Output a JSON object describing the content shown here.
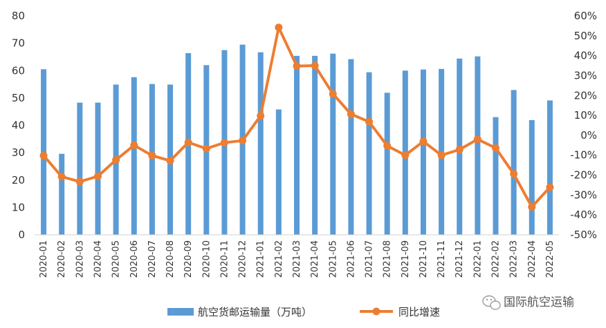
{
  "chart_data": {
    "type": "bar",
    "categories": [
      "2020-01",
      "2020-02",
      "2020-03",
      "2020-04",
      "2020-05",
      "2020-06",
      "2020-07",
      "2020-08",
      "2020-09",
      "2020-10",
      "2020-11",
      "2020-12",
      "2021-01",
      "2021-02",
      "2021-03",
      "2021-04",
      "2021-05",
      "2021-06",
      "2021-07",
      "2021-08",
      "2021-09",
      "2021-10",
      "2021-11",
      "2021-12",
      "2022-01",
      "2022-02",
      "2022-03",
      "2022-04",
      "2022-05"
    ],
    "series": [
      {
        "name": "航空货邮运输量（万吨）",
        "type": "bar",
        "axis": "left",
        "color": "#5B9BD5",
        "values": [
          60.5,
          29.6,
          48.3,
          48.3,
          54.9,
          57.6,
          55.1,
          54.9,
          66.4,
          62.0,
          67.5,
          69.5,
          66.7,
          45.8,
          65.4,
          65.4,
          66.2,
          64.2,
          59.4,
          51.9,
          60.0,
          60.4,
          60.6,
          64.4,
          65.2,
          43.0,
          52.9,
          41.9,
          49.1
        ]
      },
      {
        "name": "同比增速",
        "type": "line",
        "axis": "right",
        "color": "#ED7D31",
        "values": [
          -10.2,
          -20.8,
          -23.3,
          -20.6,
          -12.4,
          -5.0,
          -10.2,
          -12.8,
          -3.6,
          -6.7,
          -3.7,
          -2.7,
          9.8,
          54.2,
          34.8,
          35.0,
          20.8,
          10.6,
          6.8,
          -5.3,
          -10.0,
          -3.1,
          -10.0,
          -7.2,
          -2.0,
          -6.4,
          -19.4,
          -36.0,
          -26.1
        ]
      }
    ],
    "left_axis": {
      "ylim": [
        0,
        80
      ],
      "ticks": [
        "0",
        "10",
        "20",
        "30",
        "40",
        "50",
        "60",
        "70",
        "80"
      ]
    },
    "right_axis": {
      "ylim": [
        -50,
        60
      ],
      "ticks": [
        "-50%",
        "-40%",
        "-30%",
        "-20%",
        "-10%",
        "0%",
        "10%",
        "20%",
        "30%",
        "40%",
        "50%",
        "60%"
      ]
    },
    "legend": {
      "position": "bottom"
    },
    "grid": false
  },
  "watermark": {
    "text": "国际航空运输",
    "icon": "wechat-icon"
  }
}
